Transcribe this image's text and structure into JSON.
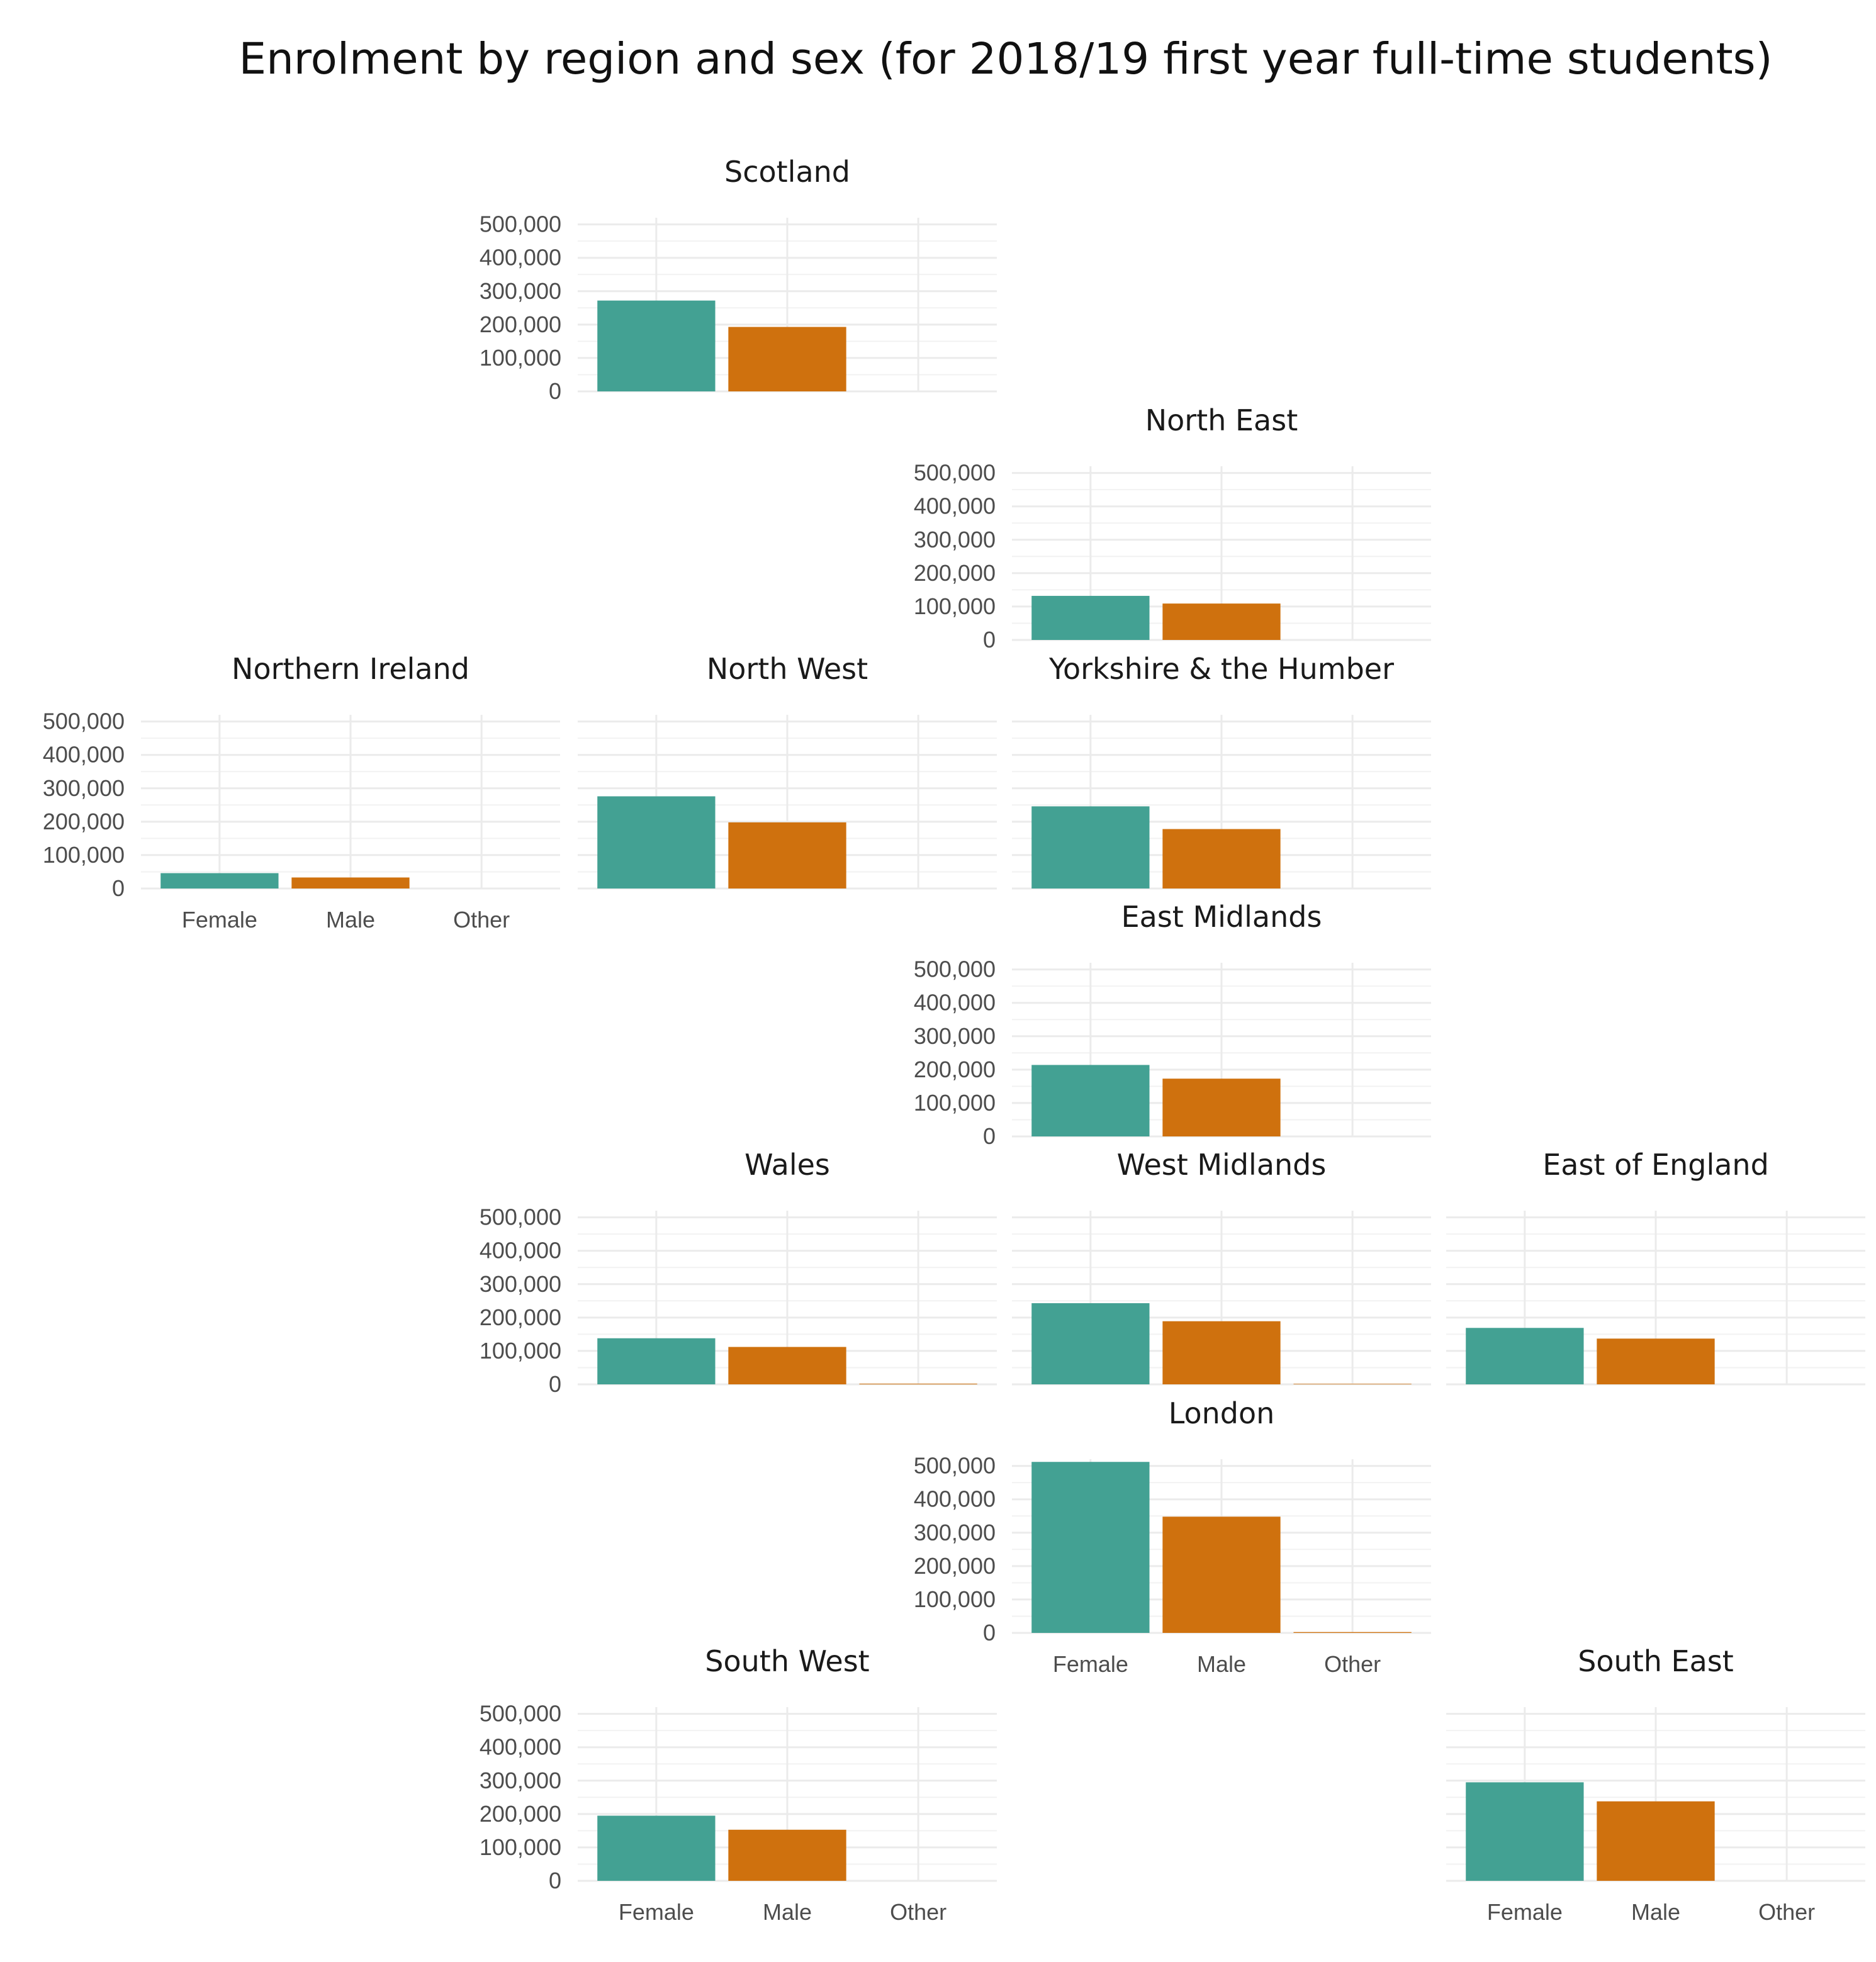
{
  "chart_data": {
    "type": "bar",
    "title": "Enrolment by region and sex (for 2018/19 first year full-time students)",
    "categories": [
      "Female",
      "Male",
      "Other"
    ],
    "y_ticks": [
      "0",
      "100,000",
      "200,000",
      "300,000",
      "400,000",
      "500,000"
    ],
    "ylim": [
      0,
      520000
    ],
    "grid": true,
    "legend": "none",
    "colors": {
      "Female": "#43a193",
      "Male": "#cf710e",
      "Other": "#cf710e"
    },
    "facets": [
      {
        "name": "Scotland",
        "row": 0,
        "col": 1,
        "values": [
          272000,
          193000,
          0
        ],
        "show_y": true,
        "show_x": false
      },
      {
        "name": "North East",
        "row": 1,
        "col": 2,
        "values": [
          132000,
          109000,
          0
        ],
        "show_y": true,
        "show_x": false
      },
      {
        "name": "Northern Ireland",
        "row": 2,
        "col": 0,
        "values": [
          46000,
          33000,
          0
        ],
        "show_y": true,
        "show_x": true
      },
      {
        "name": "North West",
        "row": 2,
        "col": 1,
        "values": [
          276000,
          198000,
          0
        ],
        "show_y": false,
        "show_x": false
      },
      {
        "name": "Yorkshire & the Humber",
        "row": 2,
        "col": 2,
        "values": [
          246000,
          178000,
          0
        ],
        "show_y": false,
        "show_x": false
      },
      {
        "name": "East Midlands",
        "row": 3,
        "col": 2,
        "values": [
          214000,
          173000,
          0
        ],
        "show_y": true,
        "show_x": false
      },
      {
        "name": "Wales",
        "row": 4,
        "col": 1,
        "values": [
          138000,
          112000,
          2000
        ],
        "show_y": true,
        "show_x": false
      },
      {
        "name": "West Midlands",
        "row": 4,
        "col": 2,
        "values": [
          243000,
          189000,
          1500
        ],
        "show_y": false,
        "show_x": false
      },
      {
        "name": "East of England",
        "row": 4,
        "col": 3,
        "values": [
          169000,
          137000,
          0
        ],
        "show_y": false,
        "show_x": false
      },
      {
        "name": "London",
        "row": 5,
        "col": 2,
        "values": [
          512000,
          348000,
          2500
        ],
        "show_y": true,
        "show_x": true
      },
      {
        "name": "South West",
        "row": 6,
        "col": 1,
        "values": [
          195000,
          153000,
          0
        ],
        "show_y": true,
        "show_x": true
      },
      {
        "name": "South East",
        "row": 6,
        "col": 3,
        "values": [
          295000,
          238000,
          0
        ],
        "show_y": false,
        "show_x": true
      }
    ]
  }
}
